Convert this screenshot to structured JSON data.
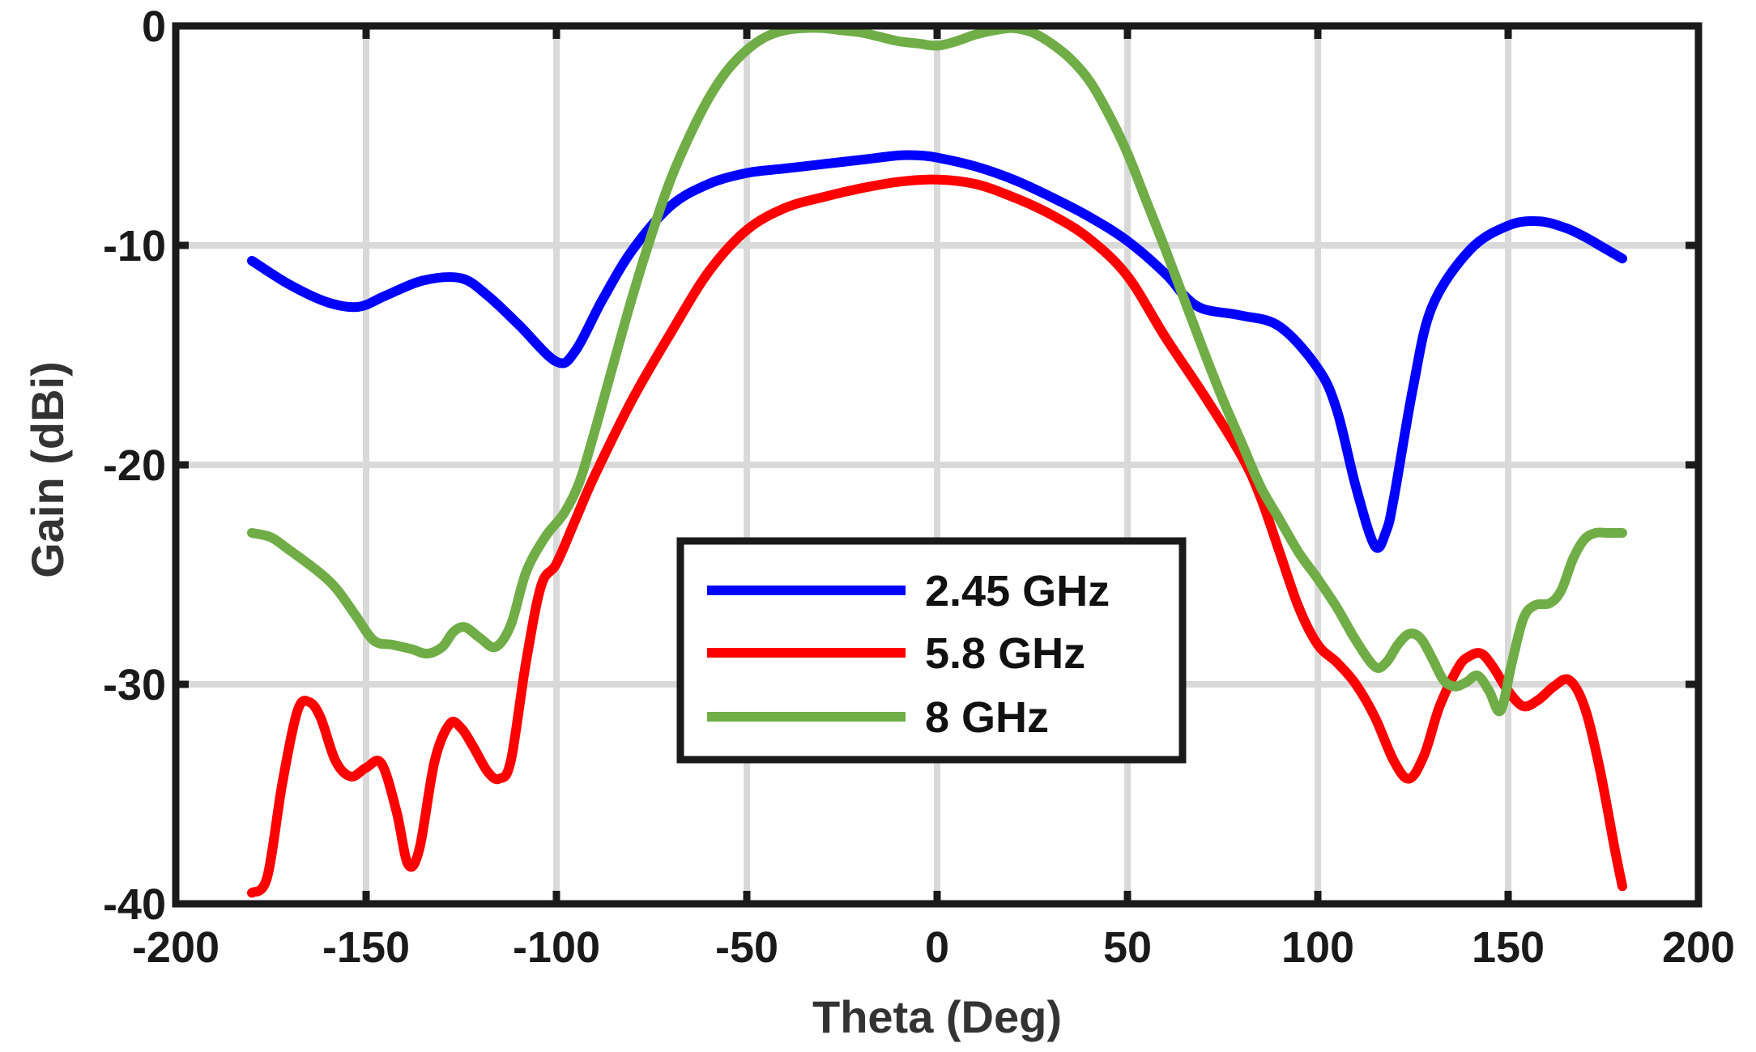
{
  "chart_data": {
    "type": "line",
    "title": "",
    "xlabel": "Theta (Deg)",
    "ylabel": "Gain (dBi)",
    "xlim": [
      -200,
      200
    ],
    "ylim": [
      -40,
      0
    ],
    "xticks": [
      -200,
      -150,
      -100,
      -50,
      0,
      50,
      100,
      150,
      200
    ],
    "yticks": [
      -40,
      -30,
      -20,
      -10,
      0
    ],
    "xtick_labels": [
      "-200",
      "-150",
      "-100",
      "-50",
      "0",
      "50",
      "100",
      "150",
      "200"
    ],
    "ytick_labels": [
      "-40",
      "-30",
      "-20",
      "-10",
      "0"
    ],
    "grid": true,
    "legend_position": "center-bottom",
    "series": [
      {
        "name": "2.45 GHz",
        "color": "#0000ff",
        "x": [
          -180,
          -170,
          -160,
          -152,
          -145,
          -135,
          -125,
          -118,
          -110,
          -100,
          -95,
          -88,
          -80,
          -70,
          -60,
          -50,
          -40,
          -30,
          -20,
          -10,
          -5,
          0,
          10,
          20,
          30,
          40,
          50,
          60,
          65,
          70,
          80,
          90,
          100,
          105,
          110,
          115,
          118,
          120,
          125,
          130,
          140,
          150,
          158,
          165,
          170,
          175,
          180
        ],
        "y": [
          -10.7,
          -11.8,
          -12.6,
          -12.8,
          -12.3,
          -11.6,
          -11.5,
          -12.3,
          -13.6,
          -15.3,
          -14.8,
          -12.5,
          -10.2,
          -8.2,
          -7.2,
          -6.7,
          -6.5,
          -6.3,
          -6.1,
          -5.9,
          -5.9,
          -6,
          -6.4,
          -7.0,
          -7.8,
          -8.7,
          -9.8,
          -11.3,
          -12.3,
          -12.9,
          -13.2,
          -13.7,
          -15.6,
          -17.5,
          -21.0,
          -23.7,
          -23.0,
          -21.5,
          -16.5,
          -12.8,
          -10.2,
          -9.1,
          -8.9,
          -9.2,
          -9.6,
          -10.1,
          -10.6
        ]
      },
      {
        "name": "5.8 GHz",
        "color": "#ff0000",
        "x": [
          -180,
          -176,
          -172,
          -168,
          -165,
          -162,
          -158,
          -154,
          -150,
          -146,
          -142,
          -139,
          -136,
          -132,
          -128,
          -125,
          -122,
          -118,
          -115,
          -112,
          -108,
          -104,
          -100,
          -95,
          -90,
          -80,
          -70,
          -60,
          -50,
          -40,
          -30,
          -20,
          -10,
          0,
          10,
          20,
          30,
          40,
          50,
          60,
          70,
          80,
          85,
          90,
          95,
          100,
          105,
          110,
          115,
          120,
          124,
          128,
          132,
          137,
          140,
          143,
          146,
          150,
          154,
          158,
          162,
          166,
          170,
          174,
          178,
          180
        ],
        "y": [
          -39.5,
          -38.8,
          -34.5,
          -31.2,
          -30.8,
          -31.5,
          -33.5,
          -34.2,
          -33.8,
          -33.6,
          -35.8,
          -38.2,
          -37.5,
          -33.5,
          -31.8,
          -32.0,
          -32.8,
          -34.0,
          -34.3,
          -33.5,
          -29.0,
          -25.5,
          -24.5,
          -22.5,
          -20.5,
          -17.0,
          -14.0,
          -11.2,
          -9.3,
          -8.3,
          -7.8,
          -7.4,
          -7.1,
          -7.0,
          -7.2,
          -7.8,
          -8.6,
          -9.7,
          -11.4,
          -14.2,
          -16.8,
          -19.6,
          -21.5,
          -24.0,
          -26.5,
          -28.2,
          -29.0,
          -30.0,
          -31.5,
          -33.5,
          -34.3,
          -33.2,
          -31.0,
          -29.2,
          -28.7,
          -28.6,
          -29.2,
          -30.3,
          -31.0,
          -30.7,
          -30.1,
          -29.8,
          -31.0,
          -33.8,
          -37.5,
          -39.2
        ]
      },
      {
        "name": "8 GHz",
        "color": "#70ad47",
        "x": [
          -180,
          -175,
          -170,
          -163,
          -158,
          -153,
          -148,
          -143,
          -138,
          -134,
          -130,
          -127,
          -124,
          -120,
          -116,
          -112,
          -108,
          -103,
          -98,
          -94,
          -90,
          -86,
          -80,
          -75,
          -70,
          -65,
          -60,
          -55,
          -50,
          -45,
          -40,
          -35,
          -30,
          -25,
          -20,
          -15,
          -10,
          -5,
          0,
          5,
          10,
          15,
          20,
          25,
          30,
          35,
          40,
          45,
          50,
          55,
          60,
          65,
          70,
          75,
          80,
          85,
          90,
          95,
          100,
          105,
          110,
          115,
          118,
          121,
          124,
          127,
          130,
          133,
          136,
          139,
          142,
          145,
          148,
          151,
          154,
          157,
          161,
          164,
          167,
          170,
          173,
          176,
          180
        ],
        "y": [
          -23.1,
          -23.3,
          -23.9,
          -24.8,
          -25.6,
          -26.8,
          -28.0,
          -28.2,
          -28.4,
          -28.6,
          -28.3,
          -27.6,
          -27.4,
          -27.9,
          -28.3,
          -27.3,
          -24.9,
          -23.3,
          -22.2,
          -20.8,
          -18.5,
          -16.0,
          -12.3,
          -9.5,
          -7.0,
          -5.0,
          -3.3,
          -2.0,
          -1.1,
          -0.5,
          -0.2,
          -0.1,
          -0.1,
          -0.2,
          -0.3,
          -0.5,
          -0.7,
          -0.8,
          -0.9,
          -0.7,
          -0.4,
          -0.2,
          -0.1,
          -0.3,
          -0.8,
          -1.5,
          -2.5,
          -4.0,
          -5.8,
          -8.0,
          -10.2,
          -12.5,
          -14.8,
          -17.0,
          -19.0,
          -21.0,
          -22.5,
          -24.0,
          -25.2,
          -26.5,
          -28.0,
          -29.2,
          -29.0,
          -28.2,
          -27.7,
          -27.9,
          -28.8,
          -29.8,
          -30.1,
          -29.9,
          -29.6,
          -30.3,
          -31.2,
          -29.0,
          -27.0,
          -26.4,
          -26.3,
          -25.7,
          -24.3,
          -23.4,
          -23.1,
          -23.1,
          -23.1
        ]
      }
    ]
  }
}
